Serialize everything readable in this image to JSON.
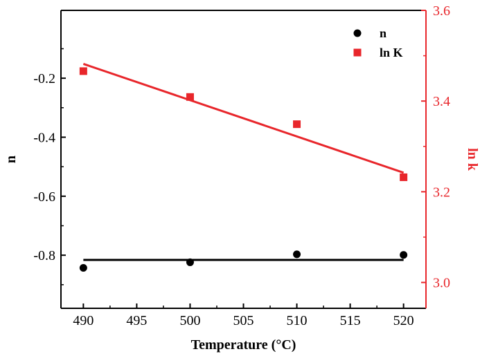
{
  "chart_data": {
    "type": "scatter",
    "x": [
      490,
      500,
      510,
      520
    ],
    "xlabel": "Temperature (°C)",
    "xlim": [
      487.9,
      522.1
    ],
    "xticks": [
      490,
      495,
      500,
      505,
      510,
      515,
      520
    ],
    "ylabel_left": "n",
    "ylim_left": [
      -0.98,
      0.03
    ],
    "yticks_left": [
      -0.8,
      -0.6,
      -0.4,
      -0.2
    ],
    "ylabel_right": "ln k",
    "ylim_right": [
      2.943,
      3.6
    ],
    "yticks_right": [
      3.0,
      3.2,
      3.4,
      3.6
    ],
    "grid": false,
    "legend_position": "top-right",
    "series": [
      {
        "name": "n",
        "axis": "left",
        "marker": "circle",
        "color": "#000000",
        "values": [
          -0.843,
          -0.824,
          -0.797,
          -0.799
        ],
        "fit": {
          "x": [
            490,
            520
          ],
          "y": [
            -0.816,
            -0.816
          ]
        }
      },
      {
        "name": "ln K",
        "axis": "right",
        "marker": "square",
        "color": "#e8262b",
        "values": [
          3.466,
          3.409,
          3.349,
          3.232
        ],
        "fit": {
          "x": [
            490,
            520
          ],
          "y": [
            3.482,
            3.242
          ]
        }
      }
    ]
  }
}
